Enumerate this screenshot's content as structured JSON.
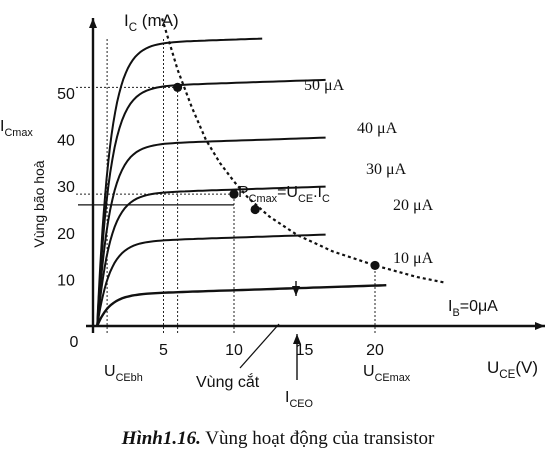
{
  "chart_data": {
    "type": "line",
    "ylabel": "I_C (mA)",
    "xlabel": "U_CE(V)",
    "xlim": [
      0,
      25
    ],
    "ylim": [
      0,
      60
    ],
    "xticks": [
      {
        "value": 5,
        "label": "5"
      },
      {
        "value": 10,
        "label": "10"
      },
      {
        "value": 15,
        "label": "15"
      },
      {
        "value": 20,
        "label": "20"
      }
    ],
    "yticks": [
      {
        "value": 10,
        "label": "10"
      },
      {
        "value": 20,
        "label": "20"
      },
      {
        "value": 30,
        "label": "30"
      },
      {
        "value": 40,
        "label": "40"
      },
      {
        "value": 50,
        "label": "50"
      }
    ],
    "origin_label": "0",
    "series": [
      {
        "name": "50 μA",
        "knee": 0.9,
        "sat": 60.5,
        "x_end": 12
      },
      {
        "name": "40 μA",
        "knee": 0.9,
        "sat": 51.2,
        "x_end": 16.5
      },
      {
        "name": "30 μA",
        "knee": 0.9,
        "sat": 38.8,
        "x_end": 16.5
      },
      {
        "name": "20 μA",
        "knee": 0.9,
        "sat": 28.3,
        "x_end": 16.5
      },
      {
        "name": "10 μA",
        "knee": 0.9,
        "sat": 18.0,
        "x_end": 16.5
      },
      {
        "name": "I_B=0μA",
        "knee": 0.9,
        "sat": 6.7,
        "x_end": 20.8
      }
    ],
    "power_curve": {
      "label": "P_Cmax=U_CE.I_C",
      "points": [
        [
          4.9,
          66
        ],
        [
          6,
          55
        ],
        [
          7,
          47
        ],
        [
          8,
          40
        ],
        [
          9,
          35
        ],
        [
          10,
          31
        ],
        [
          11,
          27.5
        ],
        [
          12.5,
          23.5
        ],
        [
          14.5,
          19.5
        ],
        [
          17,
          16
        ],
        [
          20,
          13
        ],
        [
          23,
          10.5
        ],
        [
          25,
          9.3
        ]
      ]
    },
    "markers": [
      [
        6,
        51.2
      ],
      [
        10,
        28.3
      ],
      [
        11.5,
        25
      ],
      [
        20,
        13
      ]
    ],
    "reference_lines": {
      "vertical": [
        {
          "x": 1,
          "label": "U_CEbh",
          "y_top": 62
        },
        {
          "x": 5,
          "label": "",
          "y_top": 62
        },
        {
          "x": 6,
          "label": "",
          "y_top": 51.2
        },
        {
          "x": 10,
          "label": "",
          "y_top": 28.3
        },
        {
          "x": 20,
          "label": "U_CEmax",
          "y_top": 13
        }
      ],
      "horizontal": [
        {
          "y": 51.2,
          "label": "I_Cmax"
        },
        {
          "y": 28.3,
          "label": ""
        }
      ]
    },
    "annotations": {
      "saturation_region": "Vùng bão hoà",
      "cutoff_region": "Vùng cắt",
      "iceo": "I_CEO"
    }
  },
  "caption": {
    "label": "Hình1.16.",
    "text": "Vùng hoạt động của transistor"
  }
}
